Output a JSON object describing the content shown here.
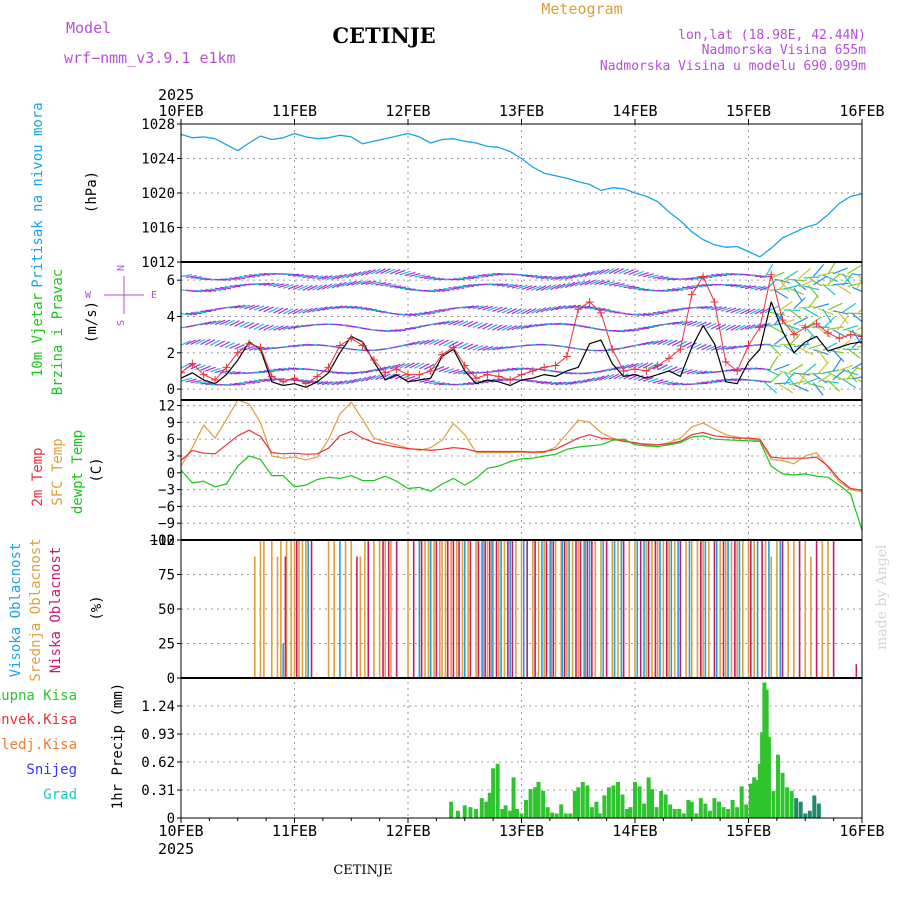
{
  "header": {
    "model_label": "Model",
    "model_name": "wrf−nmm_v3.9.1  e1km",
    "station": "CETINJE",
    "meteogram": "Meteogram",
    "lonlat": "lon,lat (18.98E, 42.44N)",
    "altitude": "Nadmorska Visina 655m",
    "model_altitude": "Nadmorska Visina u modelu 690.099m",
    "footer_station": "CETINJE",
    "watermark": "made by Angel"
  },
  "time_axis": {
    "year": "2025",
    "ticks": [
      "10FEB",
      "11FEB",
      "12FEB",
      "13FEB",
      "14FEB",
      "15FEB",
      "16FEB"
    ]
  },
  "colors": {
    "pressure": "#1aa3e8",
    "wind_line": "#000000",
    "gust": "#e8323c",
    "temp2m": "#e8323c",
    "sfc": "#dea03c",
    "dew": "#19c619",
    "high_cloud": "#1aa3e8",
    "mid_cloud": "#dea03c",
    "low_cloud": "#c8196e",
    "rain": "#2ec42e",
    "conv": "#e8323c",
    "frozen": "#ee7f35",
    "snow": "#3737ee",
    "hail": "#19c8c8",
    "axis_label_magenta": "#b74fd9"
  },
  "chart_data": [
    {
      "type": "line",
      "panel": "pressure",
      "ylabel_1": "Pritisak na nivou mora",
      "ylabel_2": "(hPa)",
      "yticks": [
        "1028",
        "1024",
        "1020",
        "1016",
        "1012"
      ],
      "ylim": [
        1012,
        1028
      ],
      "x_unit": "days since 10FEB 00Z",
      "x": [
        0,
        0.1,
        0.2,
        0.3,
        0.4,
        0.5,
        0.6,
        0.7,
        0.8,
        0.9,
        1.0,
        1.1,
        1.2,
        1.3,
        1.4,
        1.5,
        1.6,
        1.7,
        1.8,
        1.9,
        2.0,
        2.1,
        2.2,
        2.3,
        2.4,
        2.5,
        2.6,
        2.7,
        2.8,
        2.9,
        3.0,
        3.1,
        3.2,
        3.3,
        3.4,
        3.5,
        3.6,
        3.7,
        3.8,
        3.9,
        4.0,
        4.1,
        4.2,
        4.3,
        4.4,
        4.5,
        4.6,
        4.7,
        4.8,
        4.9,
        5.0,
        5.1,
        5.2,
        5.3,
        5.4,
        5.5,
        5.6,
        5.7,
        5.8,
        5.9,
        6.0
      ],
      "values": [
        1026.8,
        1026.4,
        1026.5,
        1026.3,
        1025.6,
        1024.9,
        1025.8,
        1026.6,
        1026.2,
        1026.4,
        1026.9,
        1026.5,
        1026.3,
        1026.4,
        1026.7,
        1026.5,
        1025.7,
        1026.0,
        1026.3,
        1026.6,
        1026.9,
        1026.5,
        1025.8,
        1026.2,
        1026.3,
        1026.0,
        1025.8,
        1025.4,
        1025.3,
        1024.8,
        1024.0,
        1023.0,
        1022.3,
        1022.0,
        1021.7,
        1021.3,
        1021.0,
        1020.3,
        1020.6,
        1020.5,
        1020.0,
        1019.6,
        1019.0,
        1017.8,
        1016.8,
        1015.5,
        1014.6,
        1014.0,
        1013.7,
        1013.8,
        1013.2,
        1012.6,
        1013.6,
        1014.8,
        1015.4,
        1016.0,
        1016.4,
        1017.5,
        1018.8,
        1019.6,
        1019.9
      ]
    },
    {
      "type": "line",
      "panel": "wind",
      "ylabel_1": "10m Vjetar",
      "ylabel_2": "Brzina i Pravac",
      "ylabel_3": "(m/s)",
      "compass": [
        "N",
        "W",
        "E",
        "S"
      ],
      "yticks": [
        "6",
        "4",
        "2",
        "0"
      ],
      "ylim": [
        -0.6,
        7.0
      ],
      "x_unit": "days since 10FEB 00Z",
      "x": [
        0,
        0.1,
        0.2,
        0.3,
        0.4,
        0.5,
        0.6,
        0.7,
        0.8,
        0.9,
        1.0,
        1.1,
        1.2,
        1.3,
        1.4,
        1.5,
        1.6,
        1.7,
        1.8,
        1.9,
        2.0,
        2.1,
        2.2,
        2.3,
        2.4,
        2.5,
        2.6,
        2.7,
        2.8,
        2.9,
        3.0,
        3.1,
        3.2,
        3.3,
        3.4,
        3.5,
        3.6,
        3.7,
        3.8,
        3.9,
        4.0,
        4.1,
        4.2,
        4.3,
        4.4,
        4.5,
        4.6,
        4.7,
        4.8,
        4.9,
        5.0,
        5.1,
        5.2,
        5.3,
        5.4,
        5.5,
        5.6,
        5.7,
        5.8,
        5.9,
        6.0
      ],
      "speed": [
        0.6,
        0.9,
        0.5,
        0.3,
        0.8,
        1.6,
        2.6,
        2.2,
        0.4,
        0.2,
        0.3,
        0.1,
        0.4,
        0.9,
        2.0,
        2.9,
        2.6,
        1.5,
        0.5,
        0.8,
        0.4,
        0.5,
        0.6,
        1.8,
        2.2,
        1.0,
        0.3,
        0.5,
        0.4,
        0.2,
        0.5,
        0.6,
        0.8,
        0.7,
        1.0,
        1.2,
        2.5,
        2.7,
        1.4,
        0.7,
        0.8,
        0.6,
        0.8,
        1.0,
        0.7,
        2.3,
        3.5,
        2.5,
        0.4,
        0.3,
        1.5,
        2.2,
        4.8,
        3.2,
        2.0,
        2.6,
        2.9,
        2.1,
        2.3,
        2.5,
        2.6
      ],
      "gust": [
        0.9,
        1.4,
        0.8,
        0.5,
        1.2,
        2.0,
        2.5,
        2.3,
        0.7,
        0.4,
        0.6,
        0.3,
        0.7,
        1.2,
        2.4,
        2.8,
        2.4,
        1.6,
        0.9,
        1.1,
        0.8,
        0.8,
        1.0,
        1.9,
        2.3,
        1.3,
        0.6,
        0.8,
        0.7,
        0.5,
        0.8,
        1.0,
        1.2,
        1.3,
        1.8,
        4.4,
        4.8,
        4.2,
        2.2,
        1.0,
        1.1,
        1.0,
        1.3,
        1.7,
        2.2,
        5.2,
        6.2,
        4.8,
        1.5,
        1.0,
        2.4,
        3.4,
        6.3,
        3.8,
        3.0,
        3.4,
        3.6,
        3.1,
        2.8,
        3.0,
        2.9
      ]
    },
    {
      "type": "line",
      "panel": "temperature",
      "ylabel_1": "2m Temp",
      "ylabel_2": "SFC Temp",
      "ylabel_3": "dewpt Temp",
      "ylabel_4": "(C)",
      "yticks": [
        "12",
        "9",
        "6",
        "3",
        "0",
        "−3",
        "−6",
        "−9",
        "−12"
      ],
      "ylim": [
        -12,
        13
      ],
      "x_unit": "days since 10FEB 00Z",
      "x": [
        0,
        0.1,
        0.2,
        0.3,
        0.4,
        0.5,
        0.6,
        0.7,
        0.8,
        0.9,
        1.0,
        1.1,
        1.2,
        1.3,
        1.4,
        1.5,
        1.6,
        1.7,
        1.8,
        1.9,
        2.0,
        2.1,
        2.2,
        2.3,
        2.4,
        2.5,
        2.6,
        2.7,
        2.8,
        2.9,
        3.0,
        3.1,
        3.2,
        3.3,
        3.4,
        3.5,
        3.6,
        3.7,
        3.8,
        3.9,
        4.0,
        4.1,
        4.2,
        4.3,
        4.4,
        4.5,
        4.6,
        4.7,
        4.8,
        4.9,
        5.0,
        5.1,
        5.2,
        5.3,
        5.4,
        5.5,
        5.6,
        5.7,
        5.8,
        5.9,
        6.0
      ],
      "t2m": [
        2.2,
        4.0,
        3.5,
        3.4,
        5.0,
        6.6,
        7.6,
        6.5,
        3.6,
        3.4,
        3.5,
        3.3,
        3.4,
        4.4,
        6.6,
        7.4,
        6.2,
        5.4,
        5.0,
        4.6,
        4.3,
        4.2,
        4.0,
        4.2,
        4.5,
        4.3,
        3.8,
        3.8,
        3.8,
        3.8,
        3.8,
        3.7,
        3.8,
        4.2,
        5.2,
        6.2,
        6.8,
        6.2,
        6.0,
        5.6,
        5.4,
        5.0,
        5.0,
        5.2,
        5.6,
        6.8,
        7.2,
        6.6,
        6.4,
        6.2,
        6.2,
        6.0,
        2.8,
        2.6,
        2.6,
        2.6,
        2.8,
        1.2,
        -1.2,
        -2.8,
        -3.1
      ],
      "sfc": [
        1.2,
        4.5,
        8.5,
        6.2,
        9.5,
        13.0,
        12.3,
        9.0,
        3.0,
        2.6,
        2.8,
        2.3,
        2.8,
        6.0,
        10.5,
        12.6,
        9.5,
        6.2,
        5.5,
        5.0,
        4.4,
        4.0,
        4.5,
        5.8,
        8.8,
        6.8,
        3.6,
        3.6,
        3.6,
        3.6,
        3.7,
        3.6,
        3.6,
        4.6,
        7.0,
        9.4,
        9.0,
        7.2,
        6.2,
        5.8,
        5.2,
        5.2,
        5.0,
        5.4,
        6.2,
        8.2,
        8.9,
        7.8,
        6.8,
        6.4,
        6.0,
        5.8,
        2.4,
        2.2,
        1.6,
        3.0,
        3.6,
        1.0,
        -1.6,
        -3.0,
        -3.4
      ],
      "dew": [
        0.5,
        -1.8,
        -1.5,
        -2.5,
        -2.0,
        1.2,
        3.0,
        2.4,
        -0.5,
        -0.5,
        -2.5,
        -2.2,
        -1.2,
        -0.8,
        -1.0,
        -0.5,
        -1.4,
        -1.4,
        -0.6,
        -1.5,
        -2.8,
        -2.6,
        -3.3,
        -2.0,
        -1.0,
        -2.2,
        -1.0,
        0.8,
        1.2,
        2.0,
        2.5,
        2.6,
        3.0,
        3.3,
        4.2,
        4.6,
        4.8,
        5.0,
        5.8,
        6.0,
        5.0,
        4.8,
        4.7,
        5.0,
        5.4,
        6.4,
        6.6,
        6.0,
        5.9,
        5.8,
        5.7,
        5.6,
        1.2,
        -0.2,
        -0.4,
        -0.2,
        -0.6,
        -0.8,
        -2.2,
        -3.8,
        -10.3
      ]
    },
    {
      "type": "bar",
      "panel": "cloud",
      "ylabel_1": "Visoka Oblacnost",
      "ylabel_2": "Srednja Oblacnost",
      "ylabel_3": "Niska Oblacnost",
      "ylabel_4": "(%)",
      "yticks": [
        "100",
        "75",
        "50",
        "25",
        "0"
      ],
      "ylim": [
        0,
        100
      ],
      "x_unit": "days since 10FEB 00Z",
      "mid_x": [
        0.65,
        0.7,
        0.73,
        0.8,
        0.85,
        0.88,
        0.93,
        0.97,
        1.0,
        1.04,
        1.07,
        1.1,
        1.3,
        1.35,
        1.45,
        1.5,
        1.58,
        1.62,
        1.7,
        1.75,
        1.8,
        1.85,
        2.0,
        2.1,
        2.15,
        2.18,
        2.23,
        2.28,
        2.3,
        2.33,
        2.38,
        2.43,
        2.48,
        2.53,
        2.6,
        2.65,
        2.7,
        2.75,
        2.8,
        2.85,
        2.95,
        3.0,
        3.1,
        3.15,
        3.2,
        3.25,
        3.3,
        3.35,
        3.4,
        3.45,
        3.5,
        3.55,
        3.65,
        3.7,
        3.8,
        3.85,
        3.95,
        4.0,
        4.1,
        4.15,
        4.2,
        4.25,
        4.3,
        4.35,
        4.45,
        4.5,
        4.55,
        4.6,
        4.65,
        4.75,
        4.8,
        4.85,
        4.9,
        4.95,
        5.0,
        5.05,
        5.15,
        5.2,
        5.25,
        5.35,
        5.4,
        5.5,
        5.55,
        5.65,
        5.7
      ],
      "mid_values": [
        88,
        100,
        100,
        100,
        88,
        100,
        100,
        100,
        100,
        100,
        100,
        100,
        100,
        100,
        100,
        100,
        88,
        100,
        100,
        100,
        100,
        100,
        100,
        100,
        100,
        100,
        100,
        100,
        100,
        100,
        100,
        100,
        100,
        100,
        100,
        100,
        100,
        100,
        100,
        100,
        100,
        100,
        100,
        100,
        100,
        100,
        100,
        100,
        100,
        100,
        100,
        100,
        100,
        100,
        100,
        100,
        100,
        100,
        100,
        100,
        100,
        100,
        100,
        100,
        100,
        100,
        100,
        100,
        100,
        100,
        100,
        100,
        100,
        100,
        100,
        100,
        100,
        88,
        100,
        100,
        100,
        100,
        88,
        100,
        100
      ],
      "low_x": [
        0.92,
        1.02,
        1.15,
        1.55,
        1.65,
        1.78,
        1.83,
        1.9,
        2.05,
        2.12,
        2.2,
        2.25,
        2.35,
        2.4,
        2.45,
        2.55,
        2.62,
        2.68,
        2.72,
        2.78,
        2.88,
        2.92,
        3.05,
        3.12,
        3.22,
        3.28,
        3.38,
        3.48,
        3.52,
        3.58,
        3.62,
        3.75,
        3.9,
        4.05,
        4.12,
        4.18,
        4.28,
        4.4,
        4.58,
        4.7,
        4.78,
        4.88,
        5.02,
        5.12,
        5.3,
        5.45,
        5.6,
        5.75,
        5.95
      ],
      "low_values": [
        88,
        100,
        100,
        88,
        100,
        100,
        100,
        100,
        100,
        100,
        100,
        100,
        100,
        100,
        100,
        100,
        100,
        100,
        100,
        100,
        100,
        100,
        100,
        100,
        100,
        100,
        100,
        100,
        100,
        100,
        100,
        100,
        100,
        100,
        100,
        100,
        100,
        100,
        100,
        100,
        100,
        100,
        100,
        100,
        100,
        100,
        100,
        100,
        10
      ],
      "high_x": [
        0.9,
        1.12,
        1.4,
        2.1,
        2.2,
        2.5,
        2.66,
        2.74,
        2.82,
        2.9,
        3.02,
        3.18,
        3.26,
        3.36,
        3.42,
        3.56,
        3.6,
        3.72,
        3.82,
        3.88,
        4.02,
        4.08,
        4.22,
        4.32,
        4.38,
        4.48,
        4.62,
        4.72,
        4.82,
        4.92,
        5.08,
        5.18,
        5.28
      ],
      "high_values": [
        25,
        100,
        100,
        100,
        100,
        100,
        100,
        100,
        100,
        100,
        100,
        100,
        100,
        100,
        100,
        100,
        100,
        100,
        100,
        100,
        100,
        100,
        100,
        100,
        100,
        100,
        100,
        100,
        100,
        100,
        100,
        100,
        100
      ]
    },
    {
      "type": "bar",
      "panel": "precipitation",
      "legend": [
        "Ukupna Kisa",
        "Konvek.Kisa",
        "Zaledj.Kisa",
        "Snijeg",
        "Grad"
      ],
      "ylabel": "1hr Precip (mm)",
      "yticks": [
        "1.24",
        "0.93",
        "0.62",
        "0.31",
        "0"
      ],
      "ylim": [
        0,
        1.55
      ],
      "x_unit": "days since 10FEB 00Z",
      "x": [
        2.38,
        2.44,
        2.5,
        2.55,
        2.6,
        2.65,
        2.69,
        2.72,
        2.75,
        2.79,
        2.83,
        2.86,
        2.9,
        2.93,
        2.96,
        3.0,
        3.04,
        3.08,
        3.12,
        3.15,
        3.19,
        3.23,
        3.27,
        3.31,
        3.35,
        3.39,
        3.43,
        3.47,
        3.5,
        3.54,
        3.58,
        3.62,
        3.66,
        3.69,
        3.73,
        3.77,
        3.81,
        3.85,
        3.89,
        3.93,
        3.96,
        4.0,
        4.04,
        4.08,
        4.12,
        4.15,
        4.19,
        4.23,
        4.27,
        4.31,
        4.35,
        4.39,
        4.43,
        4.47,
        4.5,
        4.54,
        4.58,
        4.62,
        4.66,
        4.7,
        4.74,
        4.78,
        4.82,
        4.86,
        4.9,
        4.94,
        4.98,
        5.02,
        5.05,
        5.08,
        5.1,
        5.12,
        5.14,
        5.16,
        5.18,
        5.22,
        5.26,
        5.3,
        5.34,
        5.38,
        5.42,
        5.46,
        5.5,
        5.54,
        5.58,
        5.62
      ],
      "values": [
        0.18,
        0.08,
        0.14,
        0.12,
        0.1,
        0.22,
        0.18,
        0.28,
        0.55,
        0.6,
        0.1,
        0.14,
        0.08,
        0.45,
        0.1,
        0.05,
        0.2,
        0.32,
        0.34,
        0.4,
        0.3,
        0.12,
        0.06,
        0.05,
        0.15,
        0.05,
        0.05,
        0.3,
        0.34,
        0.4,
        0.36,
        0.12,
        0.18,
        0.05,
        0.25,
        0.34,
        0.36,
        0.4,
        0.26,
        0.1,
        0.12,
        0.4,
        0.35,
        0.16,
        0.45,
        0.32,
        0.12,
        0.3,
        0.26,
        0.15,
        0.1,
        0.1,
        0.05,
        0.2,
        0.18,
        0.05,
        0.22,
        0.16,
        0.08,
        0.22,
        0.18,
        0.12,
        0.1,
        0.2,
        0.12,
        0.35,
        0.15,
        0.38,
        0.45,
        0.42,
        0.6,
        0.95,
        1.5,
        1.42,
        0.9,
        0.3,
        0.7,
        0.5,
        0.34,
        0.3,
        0.22,
        0.18,
        0.05,
        0.08,
        0.25,
        0.16
      ]
    }
  ]
}
